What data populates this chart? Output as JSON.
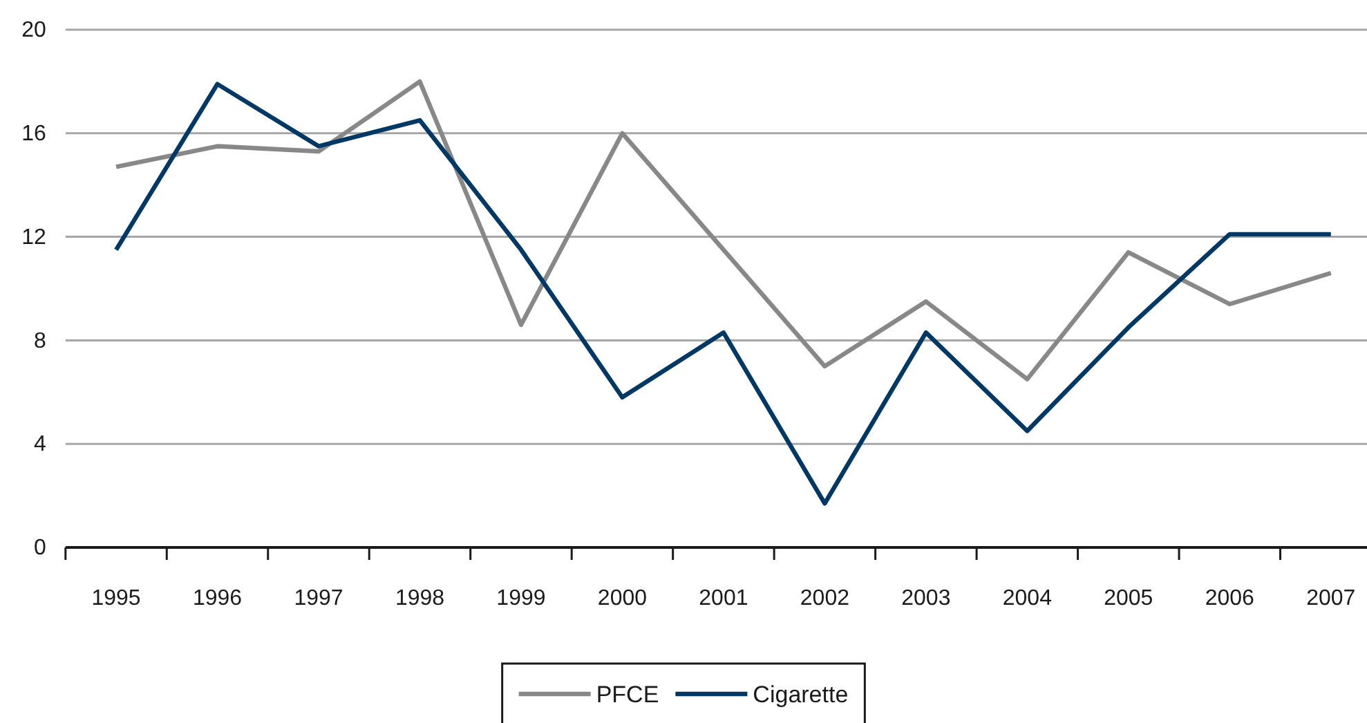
{
  "chart_data": {
    "type": "line",
    "categories": [
      "1995",
      "1996",
      "1997",
      "1998",
      "1999",
      "2000",
      "2001",
      "2002",
      "2003",
      "2004",
      "2005",
      "2006",
      "2007"
    ],
    "series": [
      {
        "name": "PFCE",
        "color": "#888888",
        "values": [
          14.7,
          15.5,
          15.3,
          18.0,
          8.6,
          16.0,
          11.5,
          7.0,
          9.5,
          6.5,
          11.4,
          9.4,
          10.6
        ]
      },
      {
        "name": "Cigarette",
        "color": "#003865",
        "values": [
          11.5,
          17.9,
          15.5,
          16.5,
          11.5,
          5.8,
          8.3,
          1.7,
          8.3,
          4.5,
          8.5,
          12.1,
          12.1
        ]
      }
    ],
    "ylim": [
      0,
      20
    ],
    "yticks": [
      0,
      4,
      8,
      12,
      16,
      20
    ],
    "grid": "y",
    "legend": "bottom",
    "marker": "none",
    "line_style": "solid"
  }
}
